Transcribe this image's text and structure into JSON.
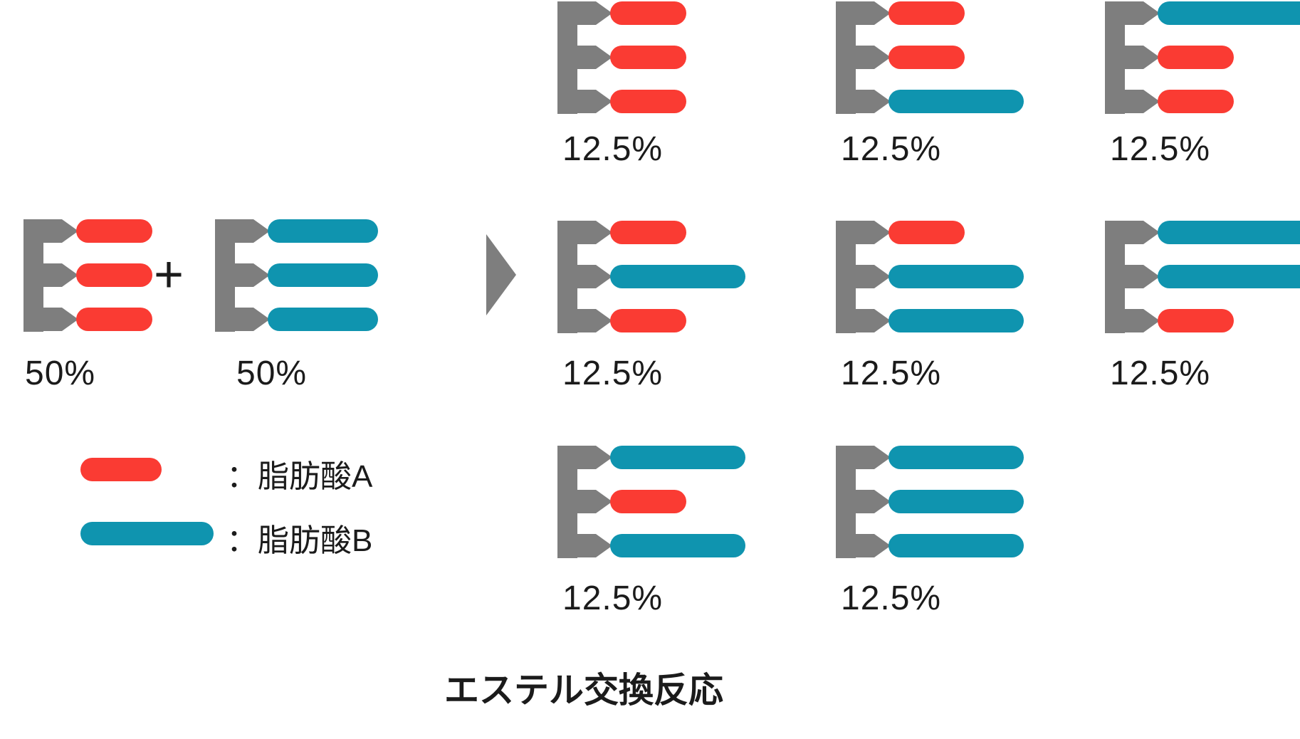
{
  "diagram": {
    "title": "エステル交換反応",
    "plus_sign": "+",
    "colors": {
      "fatty_acid_a": "#fa3b33",
      "fatty_acid_b": "#0f94af",
      "glycerol_backbone": "#7e7e7e",
      "text": "#1b1b1b"
    },
    "reactants": [
      {
        "composition": [
          "A",
          "A",
          "A"
        ],
        "label": "50%"
      },
      {
        "composition": [
          "B",
          "B",
          "B"
        ],
        "label": "50%"
      }
    ],
    "products": [
      {
        "composition": [
          "A",
          "A",
          "A"
        ],
        "label": "12.5%"
      },
      {
        "composition": [
          "A",
          "A",
          "B"
        ],
        "label": "12.5%"
      },
      {
        "composition": [
          "B",
          "A",
          "A"
        ],
        "label": "12.5%"
      },
      {
        "composition": [
          "A",
          "B",
          "A"
        ],
        "label": "12.5%"
      },
      {
        "composition": [
          "A",
          "B",
          "B"
        ],
        "label": "12.5%"
      },
      {
        "composition": [
          "B",
          "B",
          "A"
        ],
        "label": "12.5%"
      },
      {
        "composition": [
          "B",
          "A",
          "B"
        ],
        "label": "12.5%"
      },
      {
        "composition": [
          "B",
          "B",
          "B"
        ],
        "label": "12.5%"
      }
    ],
    "legend": [
      {
        "swatch": "A",
        "label": "：脂肪酸A"
      },
      {
        "swatch": "B",
        "label": "：脂肪酸B"
      }
    ]
  }
}
